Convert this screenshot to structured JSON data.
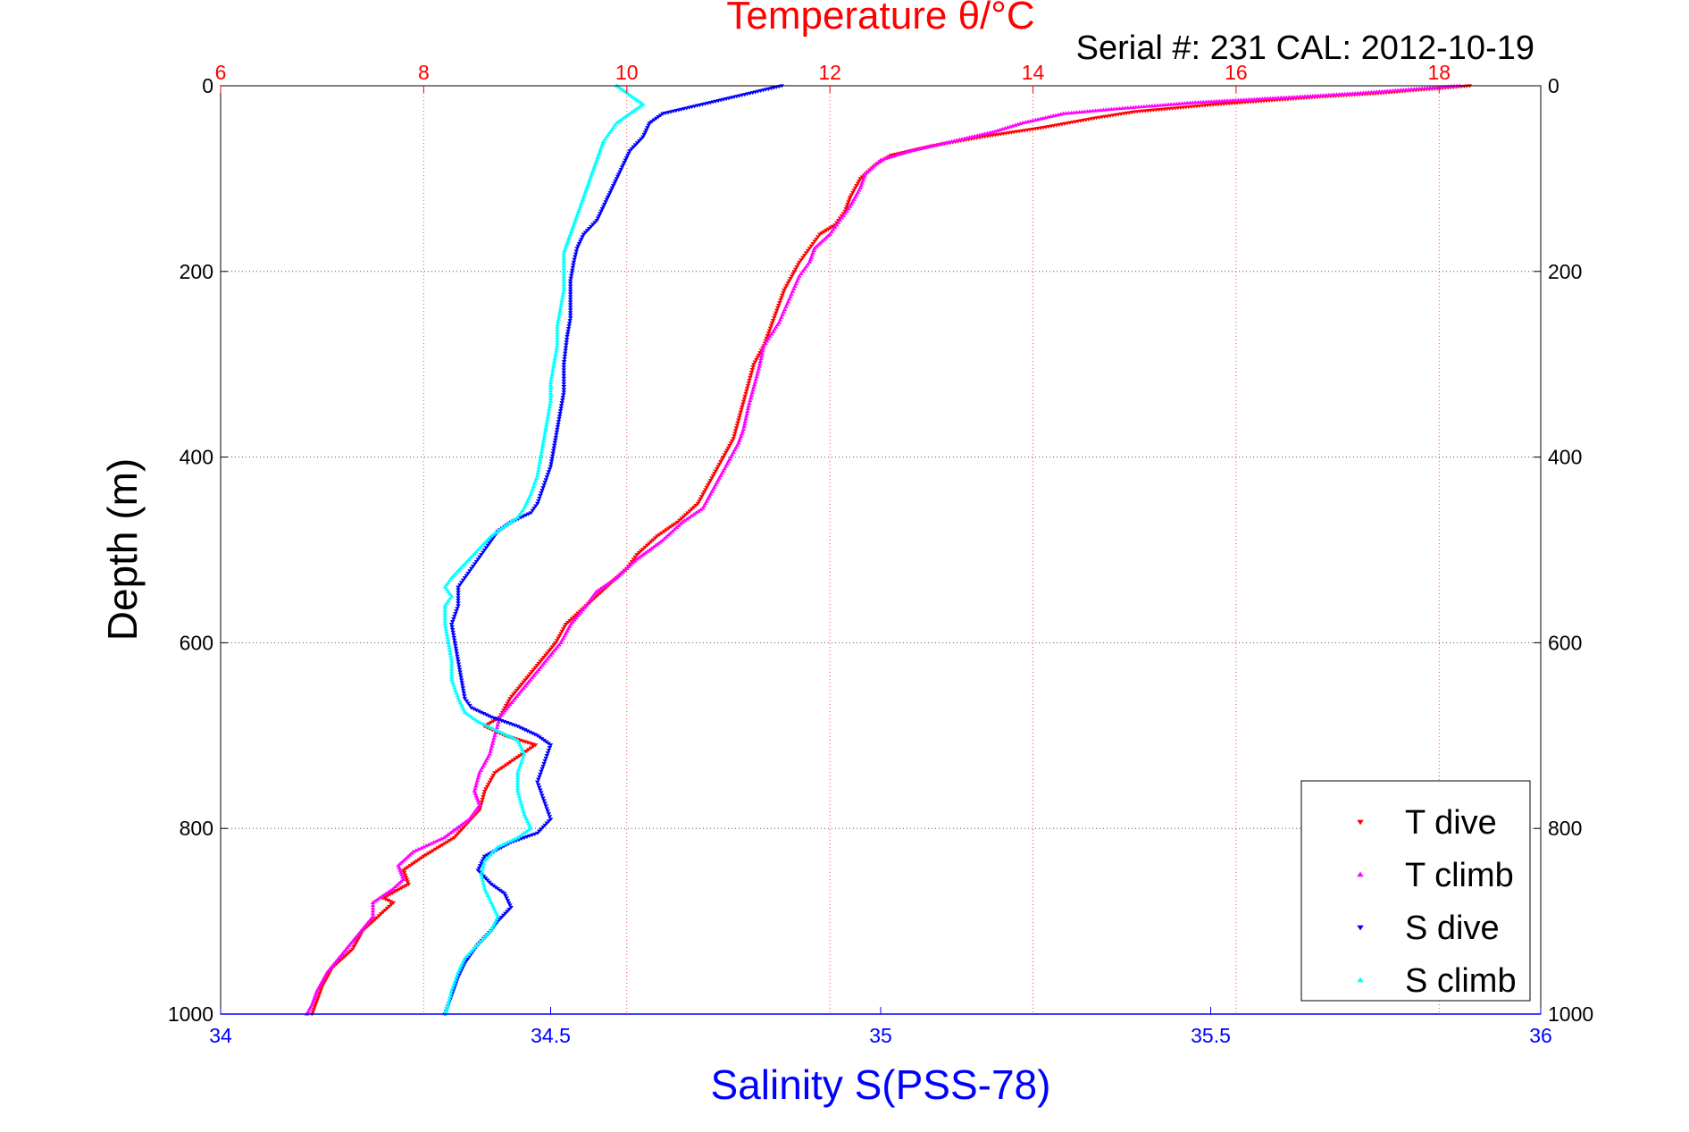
{
  "chart_data": {
    "type": "scatter",
    "title": "Temperature θ/°C",
    "subtitle": "Serial #: 231  CAL: 2012-10-19",
    "xlabel": "Salinity S(PSS-78)",
    "ylabel": "Depth (m)",
    "x_salinity": {
      "lim": [
        34,
        36
      ],
      "ticks": [
        "34",
        "34.5",
        "35",
        "35.5",
        "36"
      ],
      "color": "#0000ff"
    },
    "x_temperature": {
      "lim": [
        6,
        19
      ],
      "ticks": [
        "6",
        "8",
        "10",
        "12",
        "14",
        "16",
        "18"
      ],
      "color": "#ff0000"
    },
    "y_depth": {
      "lim": [
        0,
        1000
      ],
      "reversed": true,
      "ticks": [
        "0",
        "200",
        "400",
        "600",
        "800",
        "1000"
      ]
    },
    "grid": true,
    "legend_position": "bottom-right",
    "series": [
      {
        "name": "T dive",
        "color": "#ff0000",
        "marker": "triangle-down",
        "axis": "temperature",
        "points": [
          [
            18.3,
            0
          ],
          [
            17.4,
            8
          ],
          [
            16.8,
            12
          ],
          [
            15.8,
            20
          ],
          [
            15.0,
            28
          ],
          [
            14.6,
            35
          ],
          [
            14.1,
            45
          ],
          [
            13.5,
            55
          ],
          [
            13.0,
            65
          ],
          [
            12.6,
            75
          ],
          [
            12.45,
            85
          ],
          [
            12.3,
            100
          ],
          [
            12.2,
            120
          ],
          [
            12.15,
            135
          ],
          [
            12.05,
            150
          ],
          [
            11.9,
            160
          ],
          [
            11.8,
            175
          ],
          [
            11.7,
            190
          ],
          [
            11.65,
            200
          ],
          [
            11.55,
            220
          ],
          [
            11.45,
            250
          ],
          [
            11.35,
            280
          ],
          [
            11.25,
            300
          ],
          [
            11.2,
            320
          ],
          [
            11.15,
            340
          ],
          [
            11.1,
            360
          ],
          [
            11.05,
            380
          ],
          [
            11.0,
            390
          ],
          [
            10.9,
            410
          ],
          [
            10.8,
            430
          ],
          [
            10.7,
            450
          ],
          [
            10.5,
            470
          ],
          [
            10.3,
            485
          ],
          [
            10.1,
            505
          ],
          [
            10.0,
            520
          ],
          [
            9.8,
            540
          ],
          [
            9.6,
            560
          ],
          [
            9.4,
            580
          ],
          [
            9.3,
            600
          ],
          [
            9.15,
            620
          ],
          [
            9.0,
            640
          ],
          [
            8.85,
            660
          ],
          [
            8.75,
            680
          ],
          [
            8.6,
            690
          ],
          [
            8.8,
            700
          ],
          [
            9.1,
            710
          ],
          [
            8.9,
            725
          ],
          [
            8.7,
            740
          ],
          [
            8.6,
            760
          ],
          [
            8.55,
            780
          ],
          [
            8.3,
            810
          ],
          [
            8.0,
            830
          ],
          [
            7.8,
            845
          ],
          [
            7.85,
            860
          ],
          [
            7.6,
            875
          ],
          [
            7.7,
            880
          ],
          [
            7.4,
            910
          ],
          [
            7.3,
            930
          ],
          [
            7.1,
            950
          ],
          [
            7.0,
            970
          ],
          [
            6.95,
            985
          ],
          [
            6.9,
            1000
          ]
        ]
      },
      {
        "name": "T climb",
        "color": "#ff00ff",
        "marker": "triangle-up",
        "axis": "temperature",
        "points": [
          [
            18.2,
            0
          ],
          [
            17.2,
            8
          ],
          [
            16.6,
            12
          ],
          [
            15.6,
            18
          ],
          [
            14.8,
            25
          ],
          [
            14.3,
            30
          ],
          [
            13.9,
            40
          ],
          [
            13.6,
            50
          ],
          [
            13.2,
            60
          ],
          [
            12.8,
            70
          ],
          [
            12.5,
            80
          ],
          [
            12.35,
            95
          ],
          [
            12.3,
            110
          ],
          [
            12.2,
            130
          ],
          [
            12.1,
            145
          ],
          [
            12.0,
            160
          ],
          [
            11.85,
            175
          ],
          [
            11.8,
            190
          ],
          [
            11.7,
            205
          ],
          [
            11.6,
            230
          ],
          [
            11.5,
            255
          ],
          [
            11.35,
            280
          ],
          [
            11.3,
            305
          ],
          [
            11.25,
            325
          ],
          [
            11.2,
            345
          ],
          [
            11.15,
            370
          ],
          [
            11.1,
            385
          ],
          [
            11.05,
            395
          ],
          [
            10.95,
            415
          ],
          [
            10.85,
            435
          ],
          [
            10.75,
            455
          ],
          [
            10.55,
            470
          ],
          [
            10.35,
            490
          ],
          [
            10.1,
            510
          ],
          [
            9.9,
            530
          ],
          [
            9.7,
            545
          ],
          [
            9.6,
            560
          ],
          [
            9.45,
            580
          ],
          [
            9.35,
            600
          ],
          [
            9.2,
            620
          ],
          [
            9.05,
            640
          ],
          [
            8.9,
            660
          ],
          [
            8.75,
            680
          ],
          [
            8.7,
            700
          ],
          [
            8.65,
            720
          ],
          [
            8.55,
            740
          ],
          [
            8.5,
            760
          ],
          [
            8.55,
            775
          ],
          [
            8.45,
            790
          ],
          [
            8.2,
            810
          ],
          [
            7.9,
            825
          ],
          [
            7.75,
            840
          ],
          [
            7.8,
            855
          ],
          [
            7.7,
            865
          ],
          [
            7.5,
            880
          ],
          [
            7.5,
            895
          ],
          [
            7.35,
            915
          ],
          [
            7.2,
            935
          ],
          [
            7.05,
            955
          ],
          [
            6.95,
            975
          ],
          [
            6.9,
            990
          ],
          [
            6.85,
            1000
          ]
        ]
      },
      {
        "name": "S dive",
        "color": "#0000ff",
        "marker": "triangle-down",
        "axis": "salinity",
        "points": [
          [
            34.85,
            0
          ],
          [
            34.79,
            10
          ],
          [
            34.73,
            20
          ],
          [
            34.67,
            30
          ],
          [
            34.65,
            40
          ],
          [
            34.64,
            55
          ],
          [
            34.62,
            70
          ],
          [
            34.61,
            85
          ],
          [
            34.6,
            100
          ],
          [
            34.59,
            115
          ],
          [
            34.58,
            130
          ],
          [
            34.57,
            145
          ],
          [
            34.55,
            160
          ],
          [
            34.54,
            175
          ],
          [
            34.535,
            190
          ],
          [
            34.53,
            210
          ],
          [
            34.53,
            230
          ],
          [
            34.53,
            250
          ],
          [
            34.525,
            270
          ],
          [
            34.52,
            300
          ],
          [
            34.52,
            330
          ],
          [
            34.515,
            350
          ],
          [
            34.51,
            370
          ],
          [
            34.505,
            390
          ],
          [
            34.5,
            410
          ],
          [
            34.49,
            430
          ],
          [
            34.48,
            450
          ],
          [
            34.47,
            460
          ],
          [
            34.44,
            470
          ],
          [
            34.42,
            480
          ],
          [
            34.41,
            490
          ],
          [
            34.4,
            500
          ],
          [
            34.39,
            510
          ],
          [
            34.38,
            520
          ],
          [
            34.37,
            530
          ],
          [
            34.36,
            540
          ],
          [
            34.36,
            560
          ],
          [
            34.35,
            580
          ],
          [
            34.355,
            600
          ],
          [
            34.36,
            620
          ],
          [
            34.365,
            640
          ],
          [
            34.37,
            660
          ],
          [
            34.38,
            670
          ],
          [
            34.41,
            680
          ],
          [
            34.45,
            690
          ],
          [
            34.48,
            700
          ],
          [
            34.5,
            710
          ],
          [
            34.49,
            730
          ],
          [
            34.48,
            750
          ],
          [
            34.49,
            770
          ],
          [
            34.5,
            790
          ],
          [
            34.48,
            805
          ],
          [
            34.44,
            815
          ],
          [
            34.4,
            830
          ],
          [
            34.39,
            845
          ],
          [
            34.41,
            860
          ],
          [
            34.43,
            870
          ],
          [
            34.44,
            885
          ],
          [
            34.42,
            900
          ],
          [
            34.41,
            910
          ],
          [
            34.39,
            925
          ],
          [
            34.37,
            945
          ],
          [
            34.36,
            960
          ],
          [
            34.35,
            980
          ],
          [
            34.34,
            1000
          ]
        ]
      },
      {
        "name": "S climb",
        "color": "#00ffff",
        "marker": "triangle-up",
        "axis": "salinity",
        "points": [
          [
            34.6,
            0
          ],
          [
            34.62,
            10
          ],
          [
            34.64,
            20
          ],
          [
            34.62,
            30
          ],
          [
            34.6,
            40
          ],
          [
            34.59,
            50
          ],
          [
            34.58,
            60
          ],
          [
            34.575,
            70
          ],
          [
            34.57,
            80
          ],
          [
            34.565,
            90
          ],
          [
            34.56,
            100
          ],
          [
            34.555,
            110
          ],
          [
            34.55,
            120
          ],
          [
            34.545,
            130
          ],
          [
            34.54,
            140
          ],
          [
            34.535,
            150
          ],
          [
            34.53,
            160
          ],
          [
            34.525,
            170
          ],
          [
            34.52,
            180
          ],
          [
            34.52,
            200
          ],
          [
            34.52,
            220
          ],
          [
            34.515,
            240
          ],
          [
            34.51,
            260
          ],
          [
            34.51,
            280
          ],
          [
            34.505,
            300
          ],
          [
            34.5,
            320
          ],
          [
            34.5,
            340
          ],
          [
            34.495,
            360
          ],
          [
            34.49,
            380
          ],
          [
            34.485,
            400
          ],
          [
            34.48,
            420
          ],
          [
            34.47,
            440
          ],
          [
            34.46,
            455
          ],
          [
            34.45,
            465
          ],
          [
            34.43,
            475
          ],
          [
            34.41,
            485
          ],
          [
            34.39,
            500
          ],
          [
            34.37,
            515
          ],
          [
            34.35,
            530
          ],
          [
            34.34,
            540
          ],
          [
            34.35,
            550
          ],
          [
            34.34,
            560
          ],
          [
            34.34,
            580
          ],
          [
            34.345,
            600
          ],
          [
            34.35,
            620
          ],
          [
            34.35,
            640
          ],
          [
            34.36,
            660
          ],
          [
            34.37,
            675
          ],
          [
            34.39,
            685
          ],
          [
            34.42,
            695
          ],
          [
            34.45,
            705
          ],
          [
            34.46,
            720
          ],
          [
            34.45,
            740
          ],
          [
            34.45,
            760
          ],
          [
            34.46,
            785
          ],
          [
            34.47,
            800
          ],
          [
            34.45,
            810
          ],
          [
            34.42,
            820
          ],
          [
            34.4,
            835
          ],
          [
            34.395,
            850
          ],
          [
            34.4,
            865
          ],
          [
            34.41,
            880
          ],
          [
            34.42,
            895
          ],
          [
            34.41,
            910
          ],
          [
            34.39,
            925
          ],
          [
            34.37,
            940
          ],
          [
            34.36,
            955
          ],
          [
            34.35,
            975
          ],
          [
            34.345,
            990
          ],
          [
            34.34,
            1000
          ]
        ]
      }
    ]
  }
}
